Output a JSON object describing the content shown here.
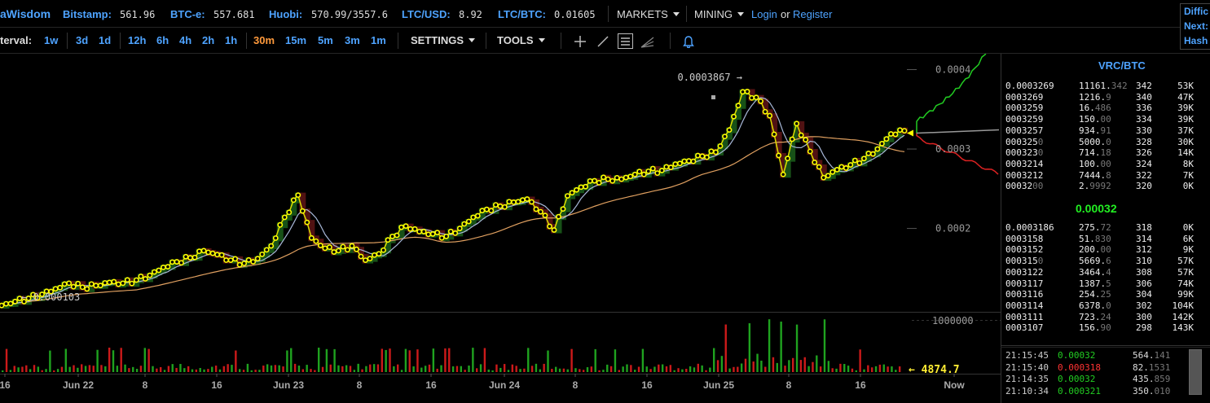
{
  "topbar": {
    "brand": "aWisdom",
    "exchanges": [
      {
        "name": "Bitstamp:",
        "value": "561.96"
      },
      {
        "name": "BTC-e:",
        "value": "557.681"
      },
      {
        "name": "Huobi:",
        "value": "570.99/3557.6"
      },
      {
        "name": "LTC/USD:",
        "value": "8.92"
      },
      {
        "name": "LTC/BTC:",
        "value": "0.01605"
      }
    ],
    "markets_label": "MARKETS",
    "mining_label": "MINING",
    "login_label": "Login",
    "or_label": "or",
    "register_label": "Register",
    "diff_box": [
      "Diffic",
      "Next:",
      "Hash"
    ]
  },
  "toolbar": {
    "interval_label": "terval:",
    "intervals": [
      "1w",
      "3d",
      "1d",
      "12h",
      "6h",
      "4h",
      "2h",
      "1h",
      "30m",
      "15m",
      "5m",
      "3m",
      "1m"
    ],
    "active_interval": "30m",
    "settings_label": "SETTINGS",
    "tools_label": "TOOLS",
    "tool_icons": [
      "crosshair-icon",
      "line-draw-icon",
      "menu-lines-icon",
      "fan-lines-icon",
      "bell-icon"
    ]
  },
  "chart_data": {
    "type": "candlestick",
    "pair": "VRC/BTC",
    "y_ticks": [
      "0.0004",
      "0.0003",
      "0.0002"
    ],
    "ylim": [
      9.5e-05,
      0.00042
    ],
    "volume_tick": "1000000",
    "x_ticks": [
      "16",
      "Jun 22",
      "8",
      "16",
      "Jun 23",
      "8",
      "16",
      "Jun 24",
      "8",
      "16",
      "Jun 25",
      "8",
      "16",
      "Now"
    ],
    "high_annotation": "0.0003867",
    "low_annotation": "0.000103",
    "volume_annotation": "4874.7",
    "price_points": [
      0.000103,
      0.000108,
      0.000112,
      0.000117,
      0.000124,
      0.000131,
      0.000126,
      0.000128,
      0.000132,
      0.000131,
      0.000135,
      0.000141,
      0.000151,
      0.000158,
      0.000163,
      0.000172,
      0.000167,
      0.00016,
      0.000156,
      0.000162,
      0.000178,
      0.000214,
      0.000242,
      0.000188,
      0.000175,
      0.000172,
      0.000178,
      0.00016,
      0.000168,
      0.00019,
      0.000203,
      0.000196,
      0.000193,
      0.00019,
      0.0002,
      0.000214,
      0.000224,
      0.000228,
      0.000233,
      0.000237,
      0.000221,
      0.000198,
      0.000241,
      0.000252,
      0.00026,
      0.000262,
      0.000262,
      0.000268,
      0.000272,
      0.000273,
      0.000281,
      0.000285,
      0.000291,
      0.000296,
      0.000324,
      0.000372,
      0.000365,
      0.000342,
      0.000268,
      0.000332,
      0.000297,
      0.000264,
      0.000274,
      0.00028,
      0.000288,
      0.0003,
      0.000319,
      0.000323
    ],
    "orderbook_asks": [
      {
        "price": "0.0003269",
        "amount": "11161.",
        "amount_dim": "342",
        "cum": "342",
        "total": "53K"
      },
      {
        "price": "0003269",
        "amount": "1216.",
        "amount_dim": "9",
        "cum": "340",
        "total": "47K"
      },
      {
        "price": "0003259",
        "amount": "16.",
        "amount_dim": "486",
        "cum": "336",
        "total": "39K"
      },
      {
        "price": "0003259",
        "amount": "150.",
        "amount_dim": "00",
        "cum": "334",
        "total": "39K"
      },
      {
        "price": "0003257",
        "amount": "934.",
        "amount_dim": "91",
        "cum": "330",
        "total": "37K"
      },
      {
        "price": "000325",
        "price_dim": "0",
        "amount": "5000.",
        "amount_dim": "0",
        "cum": "328",
        "total": "30K"
      },
      {
        "price": "000323",
        "price_dim": "0",
        "amount": "714.",
        "amount_dim": "18",
        "cum": "326",
        "total": "14K"
      },
      {
        "price": "0003214",
        "amount": "100.",
        "amount_dim": "00",
        "cum": "324",
        "total": "8K"
      },
      {
        "price": "0003212",
        "amount": "7444.",
        "amount_dim": "8",
        "cum": "322",
        "total": "7K"
      },
      {
        "price": "00032",
        "price_dim": "00",
        "amount": "2.",
        "amount_dim": "9992",
        "cum": "320",
        "total": "0K"
      }
    ],
    "last_price": "0.00032",
    "orderbook_bids": [
      {
        "price": "0.0003186",
        "amount": "275.",
        "amount_dim": "72",
        "cum": "318",
        "total": "0K"
      },
      {
        "price": "0003158",
        "amount": "51.",
        "amount_dim": "830",
        "cum": "314",
        "total": "6K"
      },
      {
        "price": "0003152",
        "amount": "200.",
        "amount_dim": "00",
        "cum": "312",
        "total": "9K"
      },
      {
        "price": "000315",
        "price_dim": "0",
        "amount": "5669.",
        "amount_dim": "6",
        "cum": "310",
        "total": "57K"
      },
      {
        "price": "0003122",
        "amount": "3464.",
        "amount_dim": "4",
        "cum": "308",
        "total": "57K"
      },
      {
        "price": "0003117",
        "amount": "1387.",
        "amount_dim": "5",
        "cum": "306",
        "total": "74K"
      },
      {
        "price": "0003116",
        "amount": "254.",
        "amount_dim": "25",
        "cum": "304",
        "total": "99K"
      },
      {
        "price": "0003114",
        "amount": "6378.",
        "amount_dim": "0",
        "cum": "302",
        "total": "104K"
      },
      {
        "price": "0003111",
        "amount": "723.",
        "amount_dim": "24",
        "cum": "300",
        "total": "142K"
      },
      {
        "price": "0003107",
        "amount": "156.",
        "amount_dim": "90",
        "cum": "298",
        "total": "143K"
      }
    ],
    "trades": [
      {
        "time": "21:15:45",
        "price": "0.00032",
        "side": "buy",
        "amount": "564.",
        "amount_dim": "141"
      },
      {
        "time": "21:15:40",
        "price": "0.000318",
        "side": "sell",
        "amount": "82.",
        "amount_dim": "1531"
      },
      {
        "time": "21:14:35",
        "price": "0.00032",
        "side": "buy",
        "amount": "435.",
        "amount_dim": "859"
      },
      {
        "time": "21:10:34",
        "price": "0.000321",
        "side": "buy",
        "amount": "350.",
        "amount_dim": "010"
      }
    ]
  },
  "colors": {
    "accent": "#4ea3ff",
    "active_interval": "#ff9a3c",
    "buy": "#22cc22",
    "sell": "#dd2222",
    "price_dot": "#ffff00"
  }
}
